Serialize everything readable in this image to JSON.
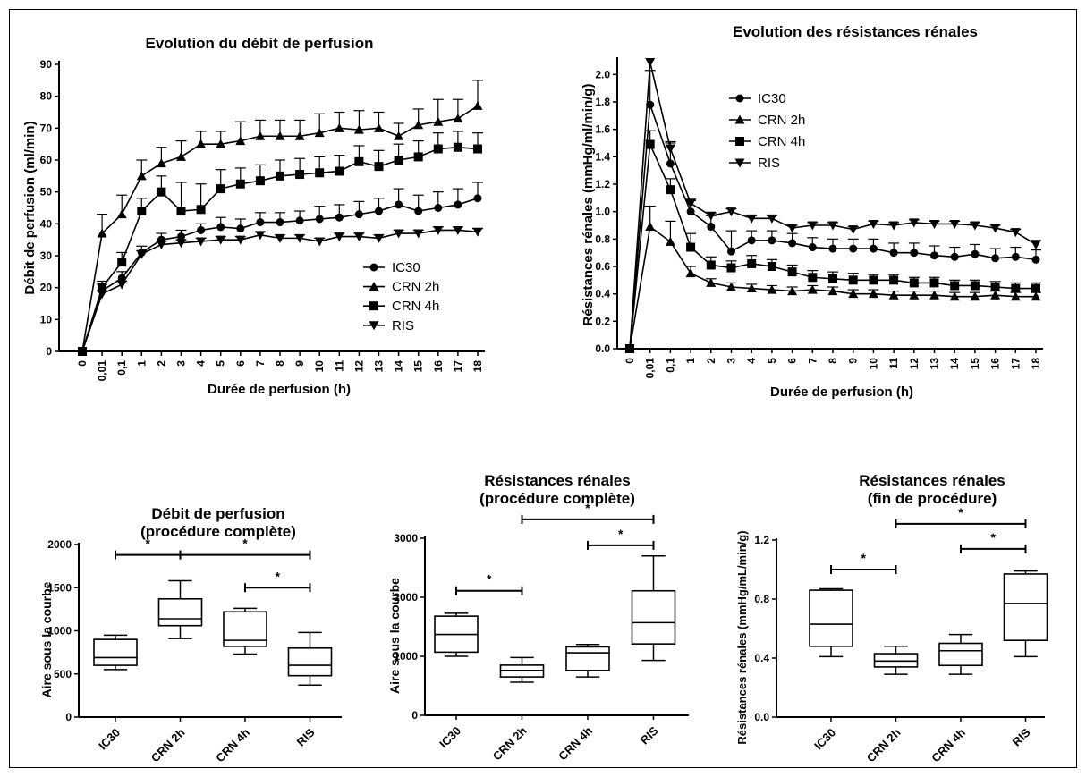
{
  "chart_data": [
    {
      "type": "line",
      "title": "Evolution du débit de perfusion",
      "xlabel": "Durée de perfusion (h)",
      "ylabel": "Débit de perfusion (ml/min)",
      "ylim": [
        0,
        90
      ],
      "yticks": [
        "0",
        "10",
        "20",
        "30",
        "40",
        "50",
        "60",
        "70",
        "80",
        "90"
      ],
      "categories": [
        "0",
        "0,01",
        "0,1",
        "1",
        "2",
        "3",
        "4",
        "5",
        "6",
        "7",
        "8",
        "9",
        "10",
        "11",
        "12",
        "13",
        "14",
        "15",
        "16",
        "17",
        "18"
      ],
      "legend_position": "bottom-right",
      "series": [
        {
          "name": "IC30",
          "marker": "circle",
          "values": [
            0,
            19,
            23,
            31,
            35,
            36,
            38,
            39,
            38.5,
            40.5,
            40.5,
            41,
            41.5,
            42,
            43,
            44,
            46,
            44,
            45,
            46,
            48
          ],
          "errors": [
            0,
            2,
            2,
            2,
            2,
            2,
            2,
            3,
            3,
            3,
            3,
            3,
            4,
            4,
            4,
            4,
            5,
            5,
            5,
            5,
            5
          ]
        },
        {
          "name": "CRN 2h",
          "marker": "triangle-up",
          "values": [
            0,
            37,
            43,
            55,
            59,
            61,
            65,
            65,
            66,
            67.5,
            67.5,
            67.5,
            68.5,
            70,
            69.5,
            70,
            67.5,
            71,
            72,
            73,
            77
          ],
          "errors": [
            0,
            6,
            6,
            5,
            5,
            5,
            4,
            4,
            6,
            5,
            5,
            5,
            6,
            5,
            6,
            5,
            4,
            5,
            7,
            6,
            8
          ]
        },
        {
          "name": "CRN 4h",
          "marker": "square",
          "values": [
            0,
            20,
            28,
            44,
            50,
            44,
            44.5,
            51,
            52.5,
            53.5,
            55,
            55.5,
            56,
            56.5,
            59.5,
            58,
            60,
            61,
            63.5,
            64,
            63.5
          ],
          "errors": [
            0,
            2,
            3,
            4,
            5,
            9,
            8,
            6,
            5,
            5,
            5,
            5,
            5,
            5,
            5,
            5,
            5,
            5,
            5,
            5,
            5
          ]
        },
        {
          "name": "RIS",
          "marker": "triangle-down",
          "values": [
            0,
            18,
            21,
            30.5,
            33.5,
            34,
            34.5,
            35,
            35,
            36.5,
            35.5,
            35.5,
            34.5,
            36,
            36,
            35.5,
            37,
            37,
            38,
            38,
            37.5
          ],
          "errors": [
            0,
            1,
            1,
            1,
            1,
            1,
            1,
            1,
            1,
            1,
            1,
            1,
            1,
            1,
            1,
            1,
            1,
            1,
            1,
            1,
            1
          ]
        }
      ]
    },
    {
      "type": "line",
      "title": "Evolution des résistances rénales",
      "xlabel": "Durée de perfusion (h)",
      "ylabel": "Résistances rénales (mmHg/ml/min/g)",
      "ylim": [
        0,
        2.1
      ],
      "yticks": [
        "0.0",
        "0.2",
        "0.4",
        "0.6",
        "0.8",
        "1.0",
        "1.2",
        "1.4",
        "1.6",
        "1.8",
        "2.0"
      ],
      "categories": [
        "0",
        "0,01",
        "0,1",
        "1",
        "2",
        "3",
        "4",
        "5",
        "6",
        "7",
        "8",
        "9",
        "10",
        "11",
        "12",
        "13",
        "14",
        "15",
        "16",
        "17",
        "18"
      ],
      "legend_position": "top-right",
      "series": [
        {
          "name": "IC30",
          "marker": "circle",
          "values": [
            0,
            1.78,
            1.35,
            1.0,
            0.89,
            0.71,
            0.79,
            0.79,
            0.77,
            0.74,
            0.73,
            0.73,
            0.73,
            0.7,
            0.7,
            0.68,
            0.67,
            0.69,
            0.66,
            0.67,
            0.65
          ],
          "errors": [
            0,
            0.25,
            0.15,
            0.08,
            0.08,
            0.15,
            0.07,
            0.07,
            0.07,
            0.07,
            0.07,
            0.07,
            0.07,
            0.07,
            0.07,
            0.07,
            0.07,
            0.07,
            0.07,
            0.07,
            0.07
          ]
        },
        {
          "name": "CRN 2h",
          "marker": "triangle-up",
          "values": [
            0,
            0.89,
            0.78,
            0.55,
            0.48,
            0.45,
            0.44,
            0.43,
            0.42,
            0.43,
            0.42,
            0.4,
            0.4,
            0.39,
            0.39,
            0.39,
            0.38,
            0.38,
            0.39,
            0.38,
            0.38
          ],
          "errors": [
            0,
            0.15,
            0.15,
            0.05,
            0.03,
            0.03,
            0.03,
            0.03,
            0.03,
            0.03,
            0.03,
            0.03,
            0.03,
            0.03,
            0.03,
            0.03,
            0.03,
            0.03,
            0.03,
            0.03,
            0.03
          ]
        },
        {
          "name": "CRN 4h",
          "marker": "square",
          "values": [
            0,
            1.49,
            1.16,
            0.74,
            0.61,
            0.59,
            0.62,
            0.6,
            0.56,
            0.52,
            0.51,
            0.5,
            0.5,
            0.5,
            0.48,
            0.48,
            0.46,
            0.46,
            0.45,
            0.44,
            0.44
          ],
          "errors": [
            0,
            0.1,
            0.08,
            0.1,
            0.06,
            0.05,
            0.06,
            0.05,
            0.05,
            0.05,
            0.05,
            0.05,
            0.04,
            0.04,
            0.04,
            0.04,
            0.04,
            0.04,
            0.04,
            0.04,
            0.04
          ]
        },
        {
          "name": "RIS",
          "marker": "triangle-down",
          "values": [
            0,
            2.09,
            1.46,
            1.06,
            0.97,
            1.0,
            0.95,
            0.95,
            0.88,
            0.9,
            0.9,
            0.87,
            0.91,
            0.9,
            0.92,
            0.91,
            0.91,
            0.9,
            0.88,
            0.85,
            0.76
          ],
          "errors": [
            0,
            0,
            0.05,
            0.03,
            0.02,
            0.02,
            0.02,
            0.02,
            0.02,
            0.02,
            0.02,
            0.02,
            0.02,
            0.02,
            0.02,
            0.02,
            0.02,
            0.02,
            0.02,
            0.02,
            0.03
          ]
        }
      ]
    },
    {
      "type": "box",
      "title": [
        "Débit de perfusion",
        "(procédure complète)"
      ],
      "ylabel": "Aire sous la courbe",
      "ylim": [
        0,
        2000
      ],
      "yticks": [
        "0",
        "500",
        "1000",
        "1500",
        "2000"
      ],
      "categories": [
        "IC30",
        "CRN 2h",
        "CRN 4h",
        "RIS"
      ],
      "boxes": [
        {
          "min": 550,
          "q1": 600,
          "median": 690,
          "q3": 900,
          "max": 950
        },
        {
          "min": 910,
          "q1": 1060,
          "median": 1140,
          "q3": 1370,
          "max": 1580
        },
        {
          "min": 730,
          "q1": 820,
          "median": 890,
          "q3": 1220,
          "max": 1260
        },
        {
          "min": 370,
          "q1": 480,
          "median": 600,
          "q3": 800,
          "max": 980
        }
      ],
      "significance": [
        {
          "from": 0,
          "to": 1,
          "label": "*",
          "y": 1880
        },
        {
          "from": 1,
          "to": 3,
          "label": "*",
          "y": 1880
        },
        {
          "from": 2,
          "to": 3,
          "label": "*",
          "y": 1500
        }
      ]
    },
    {
      "type": "box",
      "title": [
        "Résistances rénales",
        "(procédure complète)"
      ],
      "ylabel": "Aire sous la courbe",
      "ylim": [
        0,
        3000
      ],
      "yticks": [
        "0",
        "1000",
        "2000",
        "3000"
      ],
      "categories": [
        "IC30",
        "CRN 2h",
        "CRN 4h",
        "RIS"
      ],
      "boxes": [
        {
          "min": 1000,
          "q1": 1070,
          "median": 1370,
          "q3": 1680,
          "max": 1730
        },
        {
          "min": 560,
          "q1": 650,
          "median": 760,
          "q3": 850,
          "max": 980
        },
        {
          "min": 650,
          "q1": 760,
          "median": 1060,
          "q3": 1160,
          "max": 1200
        },
        {
          "min": 930,
          "q1": 1210,
          "median": 1570,
          "q3": 2110,
          "max": 2700
        }
      ],
      "significance": [
        {
          "from": 0,
          "to": 1,
          "label": "*",
          "y": 2110
        },
        {
          "from": 1,
          "to": 3,
          "label": "*",
          "y": 3320
        },
        {
          "from": 2,
          "to": 3,
          "label": "*",
          "y": 2880
        }
      ]
    },
    {
      "type": "box",
      "title": [
        "Résistances rénales",
        "(fin de procédure)"
      ],
      "ylabel": "Résistances rénales (mmHg/mL/min/g)",
      "ylim": [
        0,
        1.2
      ],
      "yticks": [
        "0.0",
        "0.4",
        "0.8",
        "1.2"
      ],
      "categories": [
        "IC30",
        "CRN 2h",
        "CRN 4h",
        "RIS"
      ],
      "boxes": [
        {
          "min": 0.41,
          "q1": 0.48,
          "median": 0.63,
          "q3": 0.86,
          "max": 0.87
        },
        {
          "min": 0.29,
          "q1": 0.34,
          "median": 0.38,
          "q3": 0.43,
          "max": 0.48
        },
        {
          "min": 0.29,
          "q1": 0.35,
          "median": 0.45,
          "q3": 0.5,
          "max": 0.56
        },
        {
          "min": 0.41,
          "q1": 0.52,
          "median": 0.77,
          "q3": 0.97,
          "max": 0.99
        }
      ],
      "significance": [
        {
          "from": 0,
          "to": 1,
          "label": "*",
          "y": 1.0
        },
        {
          "from": 1,
          "to": 3,
          "label": "*",
          "y": 1.31
        },
        {
          "from": 2,
          "to": 3,
          "label": "*",
          "y": 1.14
        }
      ]
    }
  ]
}
